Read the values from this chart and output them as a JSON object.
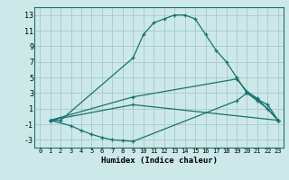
{
  "xlabel": "Humidex (Indice chaleur)",
  "bg_color": "#cce8e8",
  "grid_color": "#aacece",
  "line_color": "#1a7070",
  "xlim": [
    -0.5,
    23.5
  ],
  "ylim": [
    -4,
    14
  ],
  "yticks": [
    -3,
    -1,
    1,
    3,
    5,
    7,
    9,
    11,
    13
  ],
  "xticks": [
    0,
    1,
    2,
    3,
    4,
    5,
    6,
    7,
    8,
    9,
    10,
    11,
    12,
    13,
    14,
    15,
    16,
    17,
    18,
    19,
    20,
    21,
    22,
    23
  ],
  "series": [
    {
      "x": [
        1,
        2,
        9,
        10,
        11,
        12,
        13,
        14,
        15,
        16,
        17,
        18,
        19,
        20,
        21,
        22,
        23
      ],
      "y": [
        -0.5,
        -0.5,
        7.5,
        10.5,
        12,
        12.5,
        13,
        13,
        12.5,
        10.5,
        8.5,
        7,
        5,
        3,
        2,
        1,
        -0.5
      ]
    },
    {
      "x": [
        1,
        3,
        4,
        5,
        6,
        7,
        8,
        9,
        19,
        20,
        21,
        22,
        23
      ],
      "y": [
        -0.5,
        -1.2,
        -1.8,
        -2.3,
        -2.7,
        -3,
        -3.1,
        -3.2,
        2,
        3,
        2.2,
        1.5,
        -0.5
      ]
    },
    {
      "x": [
        1,
        9,
        19,
        20,
        21,
        23
      ],
      "y": [
        -0.5,
        2.5,
        4.8,
        3.2,
        2.3,
        -0.5
      ]
    },
    {
      "x": [
        1,
        9,
        23
      ],
      "y": [
        -0.5,
        1.5,
        -0.5
      ]
    }
  ]
}
